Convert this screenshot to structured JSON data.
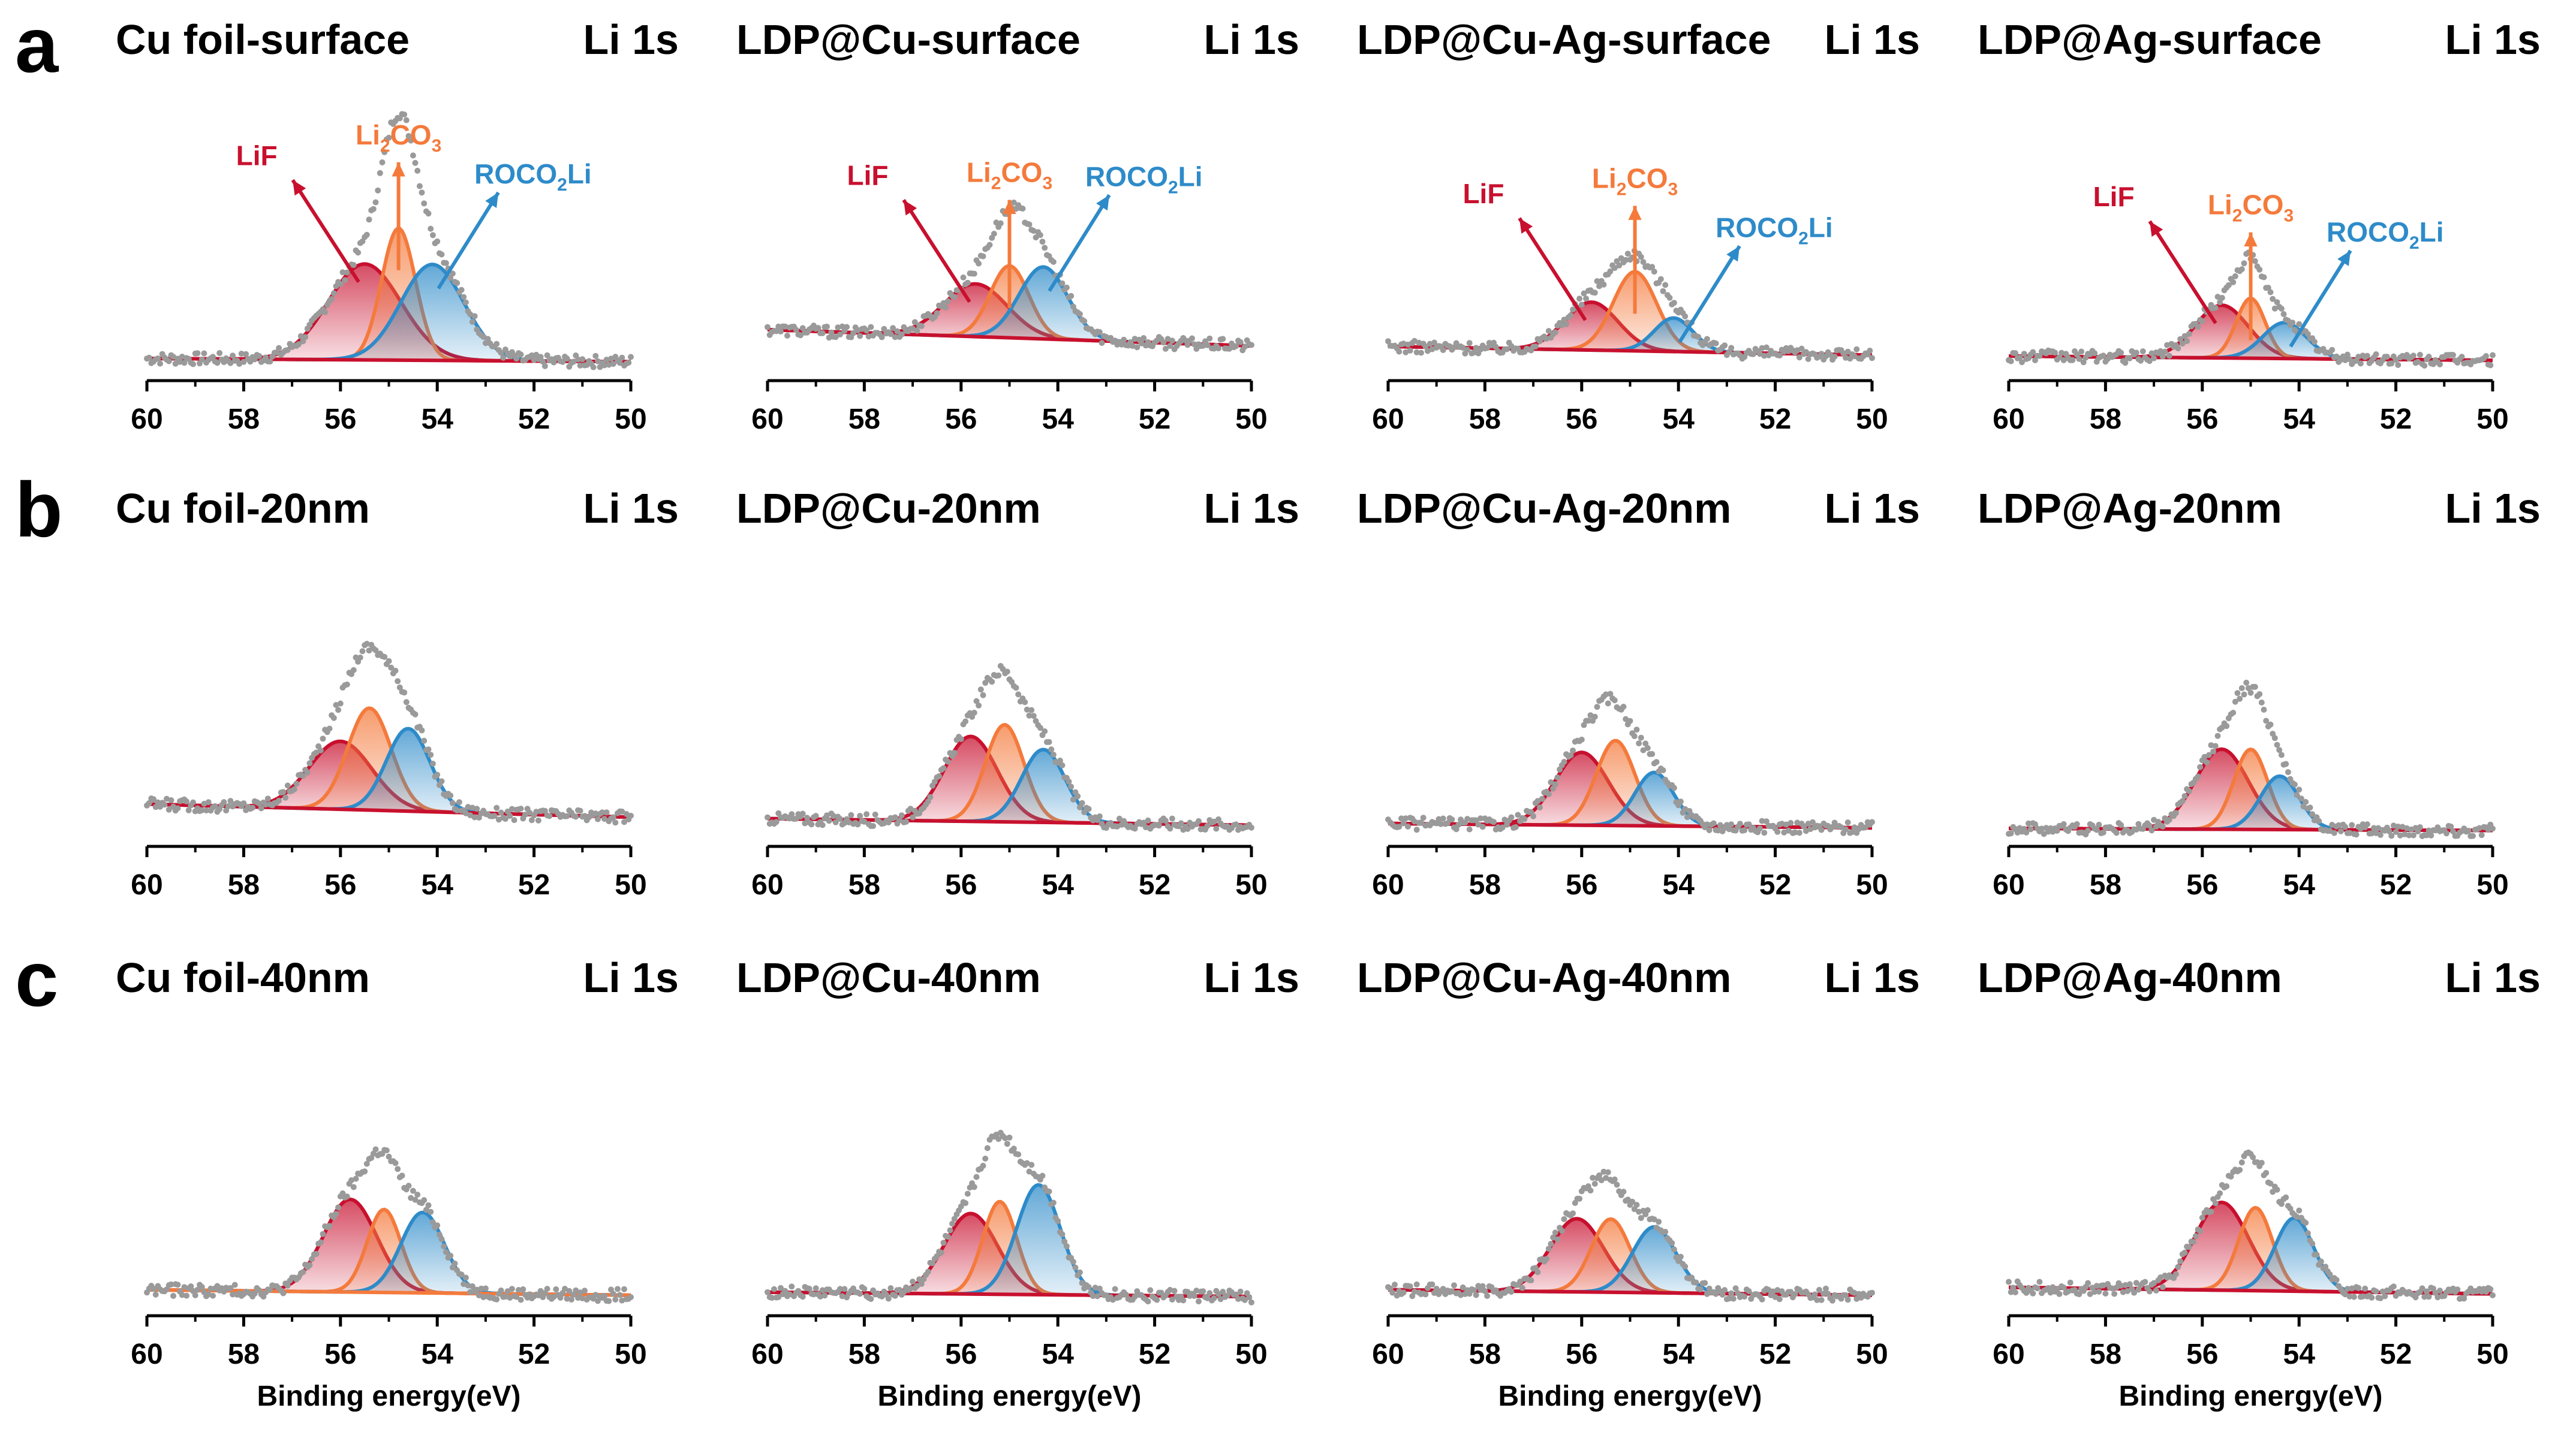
{
  "figure": {
    "row_labels": [
      "a",
      "b",
      "c"
    ],
    "colors": {
      "LiF": "#c8102e",
      "Li2CO3": "#f47a3c",
      "ROCO2Li": "#2e8bc9",
      "raw": "#9a9a9a",
      "axis": "#000000"
    }
  },
  "chart_data": [
    {
      "type": "line",
      "row": "a",
      "title": "Cu foil-surface",
      "tag": "Li 1s",
      "xlim": [
        60,
        50
      ],
      "xticks": [
        60,
        58,
        56,
        54,
        52,
        50
      ],
      "xlabel": "",
      "peaks": [
        {
          "species": "LiF",
          "center": 55.5,
          "width": 0.75,
          "height": 0.4
        },
        {
          "species": "Li2CO3",
          "center": 54.8,
          "width": 0.35,
          "height": 0.55
        },
        {
          "species": "ROCO2Li",
          "center": 54.1,
          "width": 0.65,
          "height": 0.4
        }
      ],
      "baseline": 0.03,
      "annotations": [
        {
          "text": "LiF"
        },
        {
          "text": "Li",
          "sub": "2",
          "mid": "CO",
          "sub2": "3"
        },
        {
          "text": "ROCO",
          "sub": "2",
          "mid": "Li"
        }
      ]
    },
    {
      "type": "line",
      "row": "a",
      "title": "LDP@Cu-surface",
      "tag": "Li 1s",
      "xlim": [
        60,
        50
      ],
      "xticks": [
        60,
        58,
        56,
        54,
        52,
        50
      ],
      "xlabel": "",
      "peaks": [
        {
          "species": "LiF",
          "center": 55.7,
          "width": 0.65,
          "height": 0.22
        },
        {
          "species": "Li2CO3",
          "center": 55.0,
          "width": 0.4,
          "height": 0.3
        },
        {
          "species": "ROCO2Li",
          "center": 54.3,
          "width": 0.5,
          "height": 0.3
        }
      ],
      "baseline": 0.15,
      "annotations": [
        {
          "text": "LiF"
        },
        {
          "text": "Li",
          "sub": "2",
          "mid": "CO",
          "sub2": "3"
        },
        {
          "text": "ROCO",
          "sub": "2",
          "mid": "Li"
        }
      ]
    },
    {
      "type": "line",
      "row": "a",
      "title": "LDP@Cu-Ag-surface",
      "tag": "Li 1s",
      "xlim": [
        60,
        50
      ],
      "xticks": [
        60,
        58,
        56,
        54,
        52,
        50
      ],
      "xlabel": "",
      "peaks": [
        {
          "species": "LiF",
          "center": 55.8,
          "width": 0.55,
          "height": 0.2
        },
        {
          "species": "Li2CO3",
          "center": 54.9,
          "width": 0.45,
          "height": 0.33
        },
        {
          "species": "ROCO2Li",
          "center": 54.1,
          "width": 0.4,
          "height": 0.14
        }
      ],
      "baseline": 0.08,
      "annotations": [
        {
          "text": "LiF"
        },
        {
          "text": "Li",
          "sub": "2",
          "mid": "CO",
          "sub2": "3"
        },
        {
          "text": "ROCO",
          "sub": "2",
          "mid": "Li"
        }
      ]
    },
    {
      "type": "line",
      "row": "a",
      "title": "LDP@Ag-surface",
      "tag": "Li 1s",
      "xlim": [
        60,
        50
      ],
      "xticks": [
        60,
        58,
        56,
        54,
        52,
        50
      ],
      "xlabel": "",
      "peaks": [
        {
          "species": "LiF",
          "center": 55.6,
          "width": 0.55,
          "height": 0.22
        },
        {
          "species": "Li2CO3",
          "center": 55.0,
          "width": 0.3,
          "height": 0.25
        },
        {
          "species": "ROCO2Li",
          "center": 54.3,
          "width": 0.45,
          "height": 0.15
        }
      ],
      "baseline": 0.04,
      "annotations": [
        {
          "text": "LiF"
        },
        {
          "text": "Li",
          "sub": "2",
          "mid": "CO",
          "sub2": "3"
        },
        {
          "text": "ROCO",
          "sub": "2",
          "mid": "Li"
        }
      ]
    },
    {
      "type": "line",
      "row": "b",
      "title": "Cu foil-20nm",
      "tag": "Li 1s",
      "xlim": [
        60,
        50
      ],
      "xticks": [
        60,
        58,
        56,
        54,
        52,
        50
      ],
      "xlabel": "",
      "peaks": [
        {
          "species": "LiF",
          "center": 56.0,
          "width": 0.65,
          "height": 0.28
        },
        {
          "species": "Li2CO3",
          "center": 55.4,
          "width": 0.45,
          "height": 0.42
        },
        {
          "species": "ROCO2Li",
          "center": 54.6,
          "width": 0.45,
          "height": 0.34
        }
      ],
      "baseline": 0.12,
      "annotations": []
    },
    {
      "type": "line",
      "row": "b",
      "title": "LDP@Cu-20nm",
      "tag": "Li 1s",
      "xlim": [
        60,
        50
      ],
      "xticks": [
        60,
        58,
        56,
        54,
        52,
        50
      ],
      "xlabel": "",
      "peaks": [
        {
          "species": "LiF",
          "center": 55.8,
          "width": 0.55,
          "height": 0.35
        },
        {
          "species": "Li2CO3",
          "center": 55.1,
          "width": 0.4,
          "height": 0.4
        },
        {
          "species": "ROCO2Li",
          "center": 54.3,
          "width": 0.45,
          "height": 0.3
        }
      ],
      "baseline": 0.06,
      "annotations": []
    },
    {
      "type": "line",
      "row": "b",
      "title": "LDP@Cu-Ag-20nm",
      "tag": "Li 1s",
      "xlim": [
        60,
        50
      ],
      "xticks": [
        60,
        58,
        56,
        54,
        52,
        50
      ],
      "xlabel": "",
      "peaks": [
        {
          "species": "LiF",
          "center": 56.0,
          "width": 0.55,
          "height": 0.3
        },
        {
          "species": "Li2CO3",
          "center": 55.3,
          "width": 0.4,
          "height": 0.35
        },
        {
          "species": "ROCO2Li",
          "center": 54.5,
          "width": 0.4,
          "height": 0.22
        }
      ],
      "baseline": 0.04,
      "annotations": []
    },
    {
      "type": "line",
      "row": "b",
      "title": "LDP@Ag-20nm",
      "tag": "Li 1s",
      "xlim": [
        60,
        50
      ],
      "xticks": [
        60,
        58,
        56,
        54,
        52,
        50
      ],
      "xlabel": "",
      "peaks": [
        {
          "species": "LiF",
          "center": 55.6,
          "width": 0.55,
          "height": 0.33
        },
        {
          "species": "Li2CO3",
          "center": 55.0,
          "width": 0.35,
          "height": 0.33
        },
        {
          "species": "ROCO2Li",
          "center": 54.4,
          "width": 0.4,
          "height": 0.22
        }
      ],
      "baseline": 0.02,
      "annotations": []
    },
    {
      "type": "line",
      "row": "c",
      "title": "Cu foil-40nm",
      "tag": "Li 1s",
      "xlim": [
        60,
        50
      ],
      "xticks": [
        60,
        58,
        56,
        54,
        52,
        50
      ],
      "xlabel": "Binding energy(eV)",
      "peaks": [
        {
          "species": "LiF",
          "center": 55.8,
          "width": 0.55,
          "height": 0.38
        },
        {
          "species": "Li2CO3",
          "center": 55.1,
          "width": 0.35,
          "height": 0.34
        },
        {
          "species": "ROCO2Li",
          "center": 54.3,
          "width": 0.45,
          "height": 0.33
        }
      ],
      "baseline": 0.05,
      "annotations": []
    },
    {
      "type": "line",
      "row": "c",
      "title": "LDP@Cu-40nm",
      "tag": "Li 1s",
      "xlim": [
        60,
        50
      ],
      "xticks": [
        60,
        58,
        56,
        54,
        52,
        50
      ],
      "xlabel": "Binding energy(eV)",
      "peaks": [
        {
          "species": "LiF",
          "center": 55.8,
          "width": 0.55,
          "height": 0.33
        },
        {
          "species": "Li2CO3",
          "center": 55.2,
          "width": 0.35,
          "height": 0.38
        },
        {
          "species": "ROCO2Li",
          "center": 54.4,
          "width": 0.45,
          "height": 0.45
        }
      ],
      "baseline": 0.04,
      "annotations": []
    },
    {
      "type": "line",
      "row": "c",
      "title": "LDP@Cu-Ag-40nm",
      "tag": "Li 1s",
      "xlim": [
        60,
        50
      ],
      "xticks": [
        60,
        58,
        56,
        54,
        52,
        50
      ],
      "xlabel": "Binding energy(eV)",
      "peaks": [
        {
          "species": "LiF",
          "center": 56.1,
          "width": 0.55,
          "height": 0.3
        },
        {
          "species": "Li2CO3",
          "center": 55.4,
          "width": 0.4,
          "height": 0.3
        },
        {
          "species": "ROCO2Li",
          "center": 54.5,
          "width": 0.45,
          "height": 0.27
        }
      ],
      "baseline": 0.05,
      "annotations": []
    },
    {
      "type": "line",
      "row": "c",
      "title": "LDP@Ag-40nm",
      "tag": "Li 1s",
      "xlim": [
        60,
        50
      ],
      "xticks": [
        60,
        58,
        56,
        54,
        52,
        50
      ],
      "xlabel": "Binding energy(eV)",
      "peaks": [
        {
          "species": "LiF",
          "center": 55.6,
          "width": 0.55,
          "height": 0.36
        },
        {
          "species": "Li2CO3",
          "center": 54.9,
          "width": 0.35,
          "height": 0.34
        },
        {
          "species": "ROCO2Li",
          "center": 54.1,
          "width": 0.4,
          "height": 0.3
        }
      ],
      "baseline": 0.06,
      "annotations": []
    }
  ]
}
